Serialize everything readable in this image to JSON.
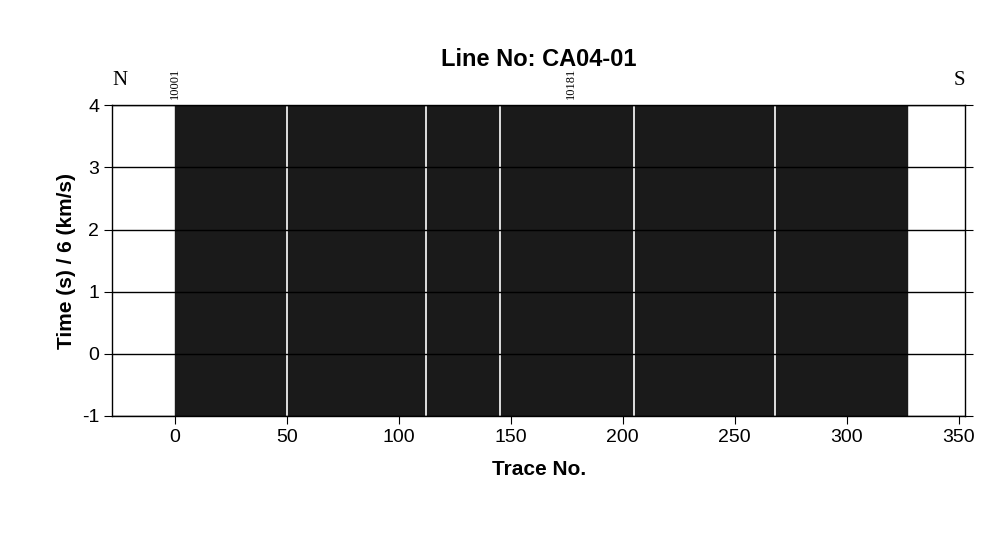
{
  "chart_data": {
    "type": "seismic_section",
    "title": "Line No: CA04-01",
    "xlabel": "Trace No.",
    "ylabel": "Time (s) / 6 (km/s)",
    "xlim": [
      -28,
      353
    ],
    "ylim": [
      -1,
      4
    ],
    "xticks": [
      0,
      50,
      100,
      150,
      200,
      250,
      300,
      350
    ],
    "yticks": [
      -1,
      0,
      1,
      2,
      3,
      4
    ],
    "grid": true,
    "color": "#1a1a1a",
    "trace_range": [
      0,
      327
    ],
    "dead_traces": [
      50,
      112,
      145,
      205,
      268
    ],
    "station_labels": [
      {
        "trace": 0,
        "label": "10001"
      },
      {
        "trace": 177,
        "label": "10181"
      }
    ],
    "direction_labels": [
      "N",
      "S"
    ]
  }
}
